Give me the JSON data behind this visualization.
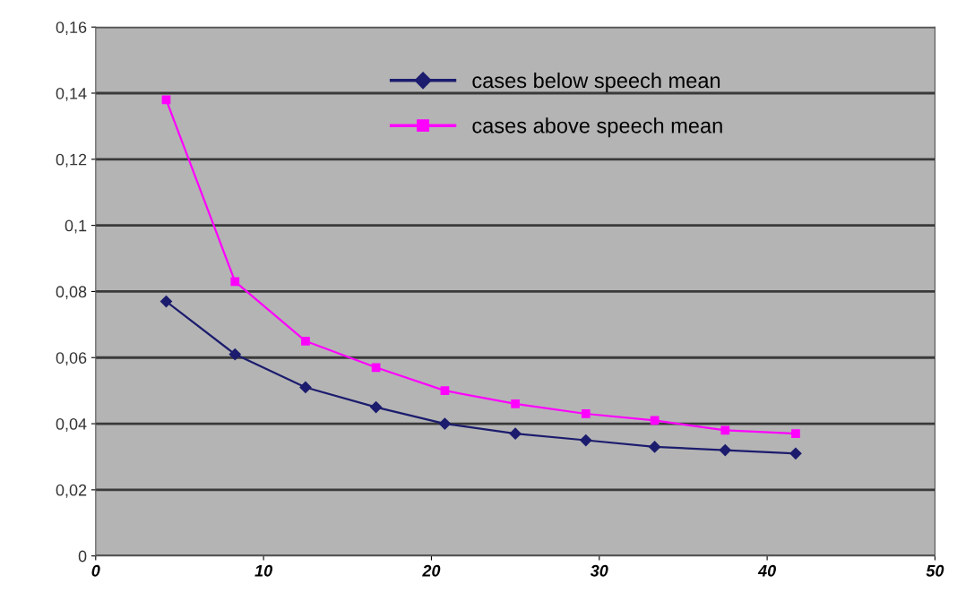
{
  "chart_data": {
    "type": "line",
    "x": [
      4.2,
      8.3,
      12.5,
      16.7,
      20.8,
      25,
      29.2,
      33.3,
      37.5,
      41.7
    ],
    "series": [
      {
        "name": "cases below speech mean",
        "color": "#1c1c6e",
        "marker": "diamond",
        "values": [
          0.077,
          0.061,
          0.051,
          0.045,
          0.04,
          0.037,
          0.035,
          0.033,
          0.032,
          0.031
        ]
      },
      {
        "name": "cases above speech mean",
        "color": "#ff00ff",
        "marker": "square",
        "values": [
          0.138,
          0.083,
          0.065,
          0.057,
          0.05,
          0.046,
          0.043,
          0.041,
          0.038,
          0.037
        ]
      }
    ],
    "xlim": [
      0,
      50
    ],
    "xticks": [
      0,
      10,
      20,
      30,
      40,
      50
    ],
    "ylim": [
      0,
      0.16
    ],
    "yticks": [
      0,
      {
        "value": 0.02,
        "label": "0,02"
      },
      {
        "value": 0.04,
        "label": "0,04"
      },
      {
        "value": 0.06,
        "label": "0,06"
      },
      {
        "value": 0.08,
        "label": "0,08"
      },
      {
        "value": 0.1,
        "label": "0,1"
      },
      {
        "value": 0.12,
        "label": "0,12"
      },
      {
        "value": 0.14,
        "label": "0,14"
      },
      {
        "value": 0.16,
        "label": "0,16"
      }
    ],
    "grid": "y",
    "legend": "top",
    "line_style": "solid"
  }
}
